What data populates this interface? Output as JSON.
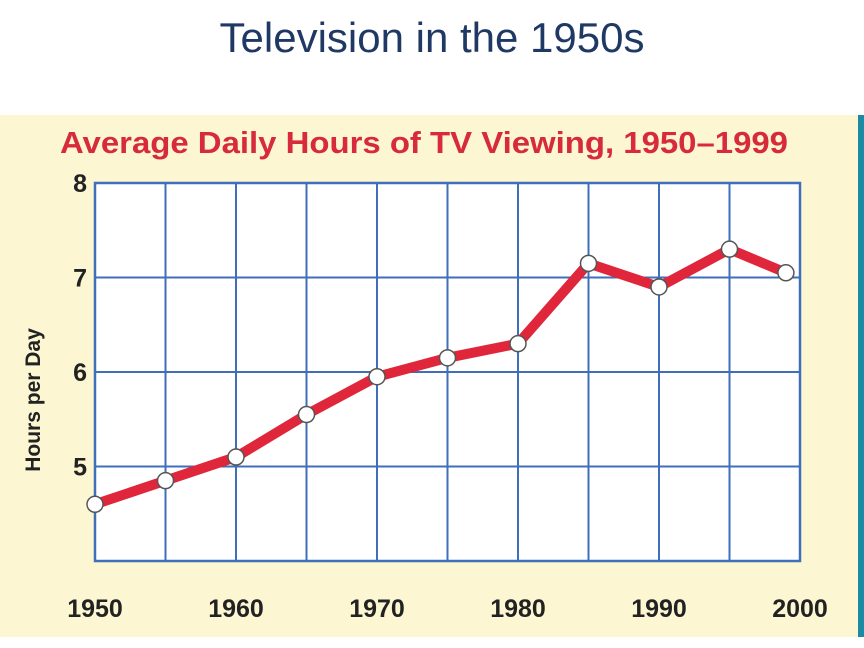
{
  "slide": {
    "title": "Television in the 1950s"
  },
  "colors": {
    "title": "#1f3864",
    "panel": "#fcf7d2",
    "grid": "#3f6fb8",
    "line": "#e0263a",
    "chart_title": "#d72a3a",
    "accent_bar": "#1b8aa3"
  },
  "chart_data": {
    "type": "line",
    "title": "Average Daily Hours of TV Viewing, 1950–1999",
    "xlabel": "",
    "ylabel": "Hours per Day",
    "xlim": [
      1950,
      2000
    ],
    "ylim": [
      4,
      8
    ],
    "x_ticks": [
      1950,
      1960,
      1970,
      1980,
      1990,
      2000
    ],
    "y_ticks": [
      5,
      6,
      7,
      8
    ],
    "grid": true,
    "series": [
      {
        "x": [
          1950,
          1955,
          1960,
          1965,
          1970,
          1975,
          1980,
          1985,
          1990,
          1995,
          1999
        ],
        "values": [
          4.6,
          4.85,
          5.1,
          5.55,
          5.95,
          6.15,
          6.3,
          7.15,
          6.9,
          7.3,
          7.05
        ]
      }
    ]
  }
}
